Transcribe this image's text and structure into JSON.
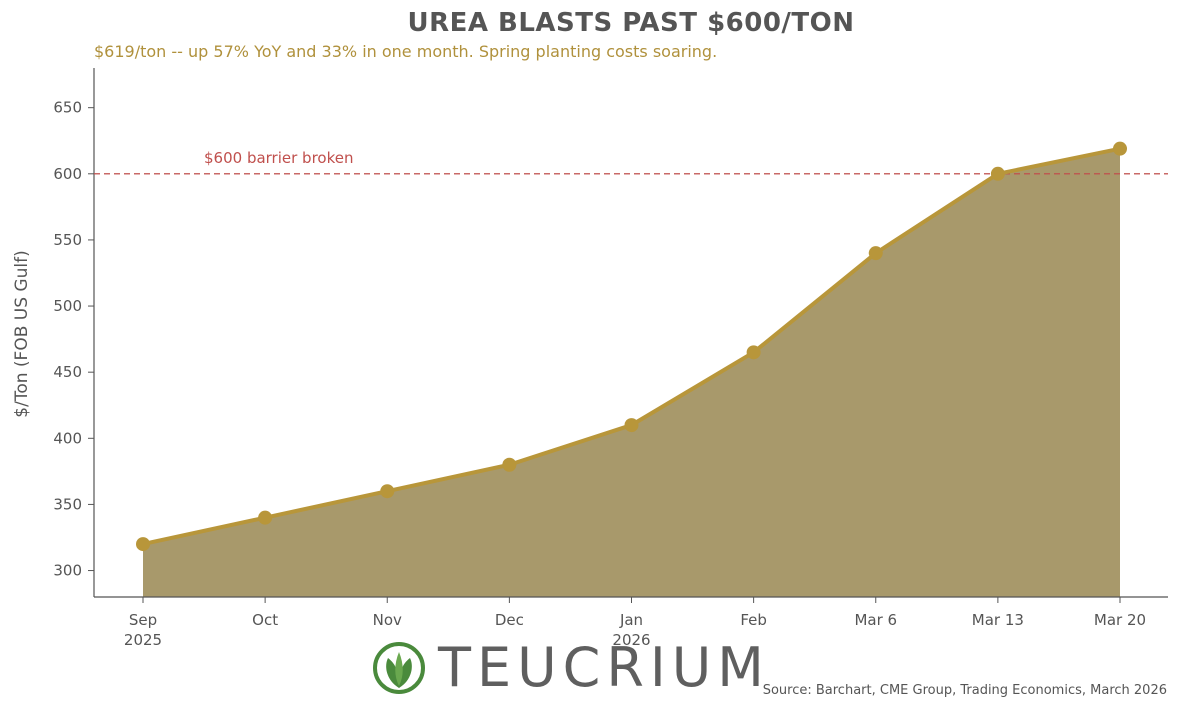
{
  "chart_data": {
    "type": "area",
    "title": "UREA BLASTS PAST $600/TON",
    "subtitle": "$619/ton -- up 57% YoY and 33% in one month. Spring planting costs soaring.",
    "xlabel": "",
    "ylabel": "$/Ton (FOB US Gulf)",
    "categories": [
      {
        "label": "Sep",
        "sublabel": "2025"
      },
      {
        "label": "Oct",
        "sublabel": ""
      },
      {
        "label": "Nov",
        "sublabel": ""
      },
      {
        "label": "Dec",
        "sublabel": ""
      },
      {
        "label": "Jan",
        "sublabel": "2026"
      },
      {
        "label": "Feb",
        "sublabel": ""
      },
      {
        "label": "Mar 6",
        "sublabel": ""
      },
      {
        "label": "Mar 13",
        "sublabel": ""
      },
      {
        "label": "Mar 20",
        "sublabel": ""
      }
    ],
    "values": [
      320,
      340,
      360,
      380,
      410,
      465,
      540,
      600,
      619
    ],
    "ylim": [
      280,
      680
    ],
    "yticks": [
      300,
      350,
      400,
      450,
      500,
      550,
      600,
      650
    ],
    "reference_line": {
      "value": 600,
      "label": "$600 barrier broken",
      "color": "#c0504d"
    },
    "grid": false,
    "line_color": "#b8963a",
    "fill_color": "#a8996b",
    "source": "Source: Barchart, CME Group, Trading Economics, March 2026"
  },
  "logo": {
    "text": "TEUCRIUM",
    "icon": "leaf-icon",
    "color": "#4a8a3c"
  }
}
